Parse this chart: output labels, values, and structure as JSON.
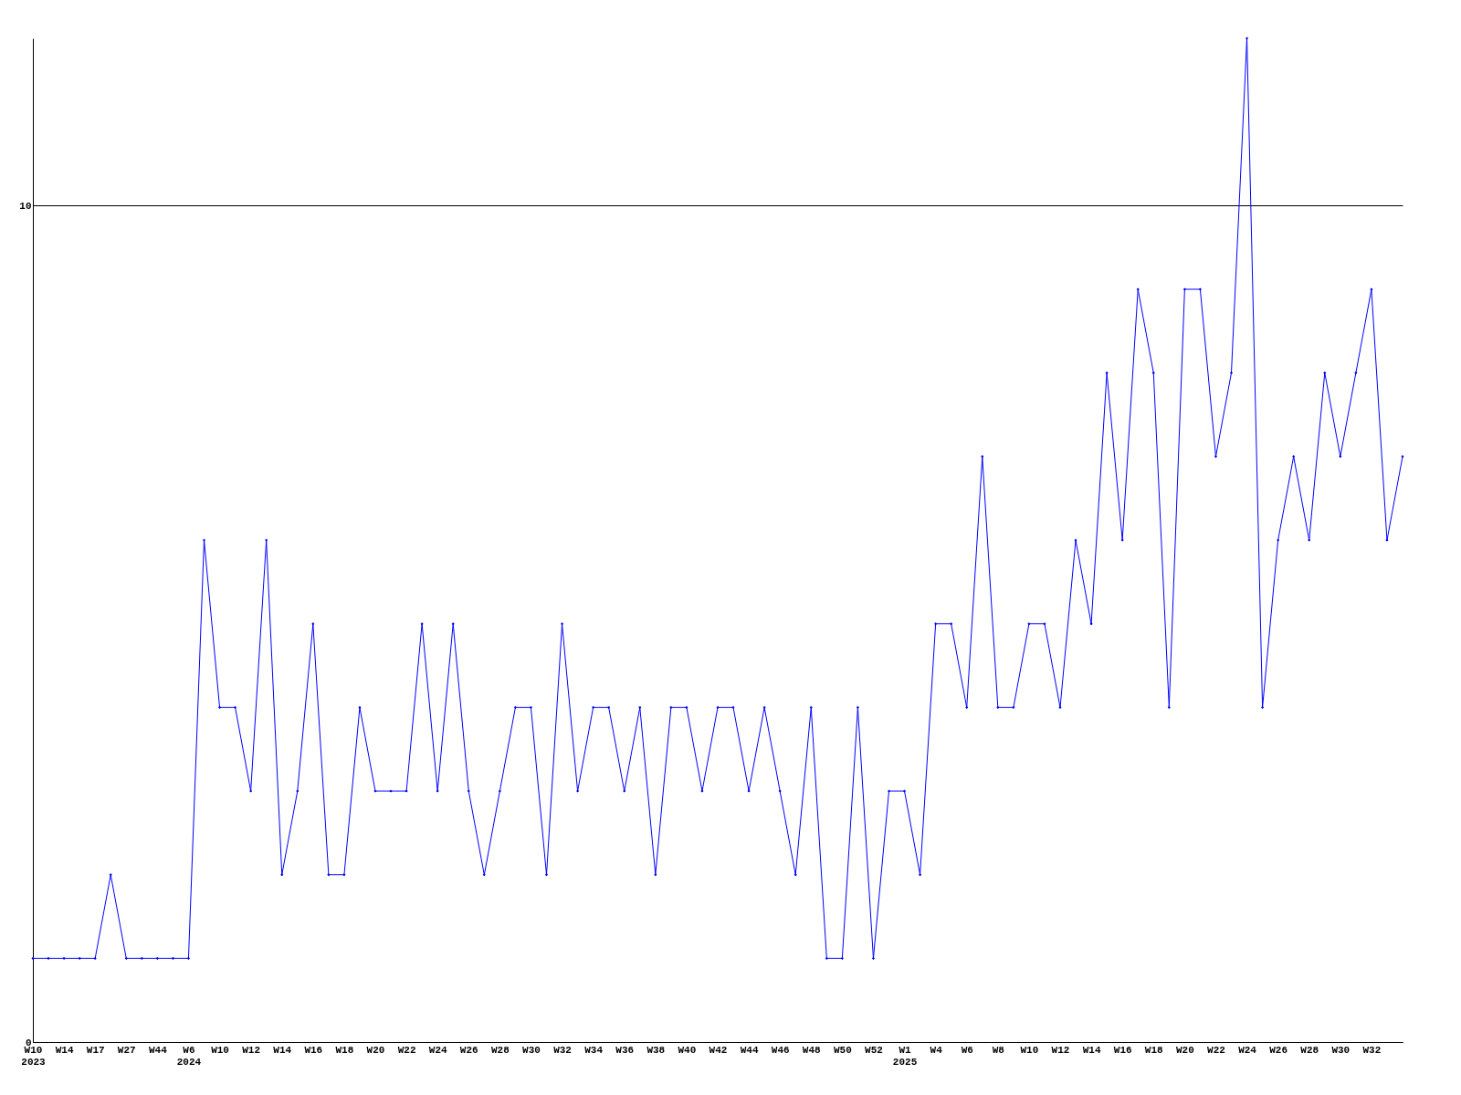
{
  "chart_data": {
    "type": "line",
    "categories": [
      "W10\n2023",
      null,
      "W14",
      null,
      "W17",
      null,
      "W27",
      null,
      "W44",
      null,
      "W6\n2024",
      null,
      "W10",
      null,
      "W12",
      null,
      "W14",
      null,
      "W16",
      null,
      "W18",
      null,
      "W20",
      null,
      "W22",
      null,
      "W24",
      null,
      "W26",
      null,
      "W28",
      null,
      "W30",
      null,
      "W32",
      null,
      "W34",
      null,
      "W36",
      null,
      "W38",
      null,
      "W40",
      null,
      "W42",
      null,
      "W44",
      null,
      "W46",
      null,
      "W48",
      null,
      "W50",
      null,
      "W52",
      null,
      "W1\n2025",
      null,
      "W4",
      null,
      "W6",
      null,
      "W8",
      null,
      "W10",
      null,
      "W12",
      null,
      "W14",
      null,
      "W16",
      null,
      "W18",
      null,
      "W20",
      null,
      "W22",
      null,
      "W24",
      null,
      "W26",
      null,
      "W28",
      null,
      "W30",
      null,
      "W32",
      null,
      null
    ],
    "series": [
      {
        "color": "#0000ff",
        "values": [
          1,
          1,
          1,
          1,
          1,
          2,
          1,
          1,
          1,
          1,
          1,
          6,
          4,
          4,
          3,
          6,
          2,
          3,
          5,
          2,
          2,
          4,
          3,
          3,
          3,
          5,
          3,
          5,
          3,
          2,
          3,
          4,
          4,
          2,
          5,
          3,
          4,
          4,
          3,
          4,
          2,
          4,
          4,
          3,
          4,
          4,
          3,
          4,
          3,
          2,
          4,
          1,
          1,
          4,
          1,
          3,
          3,
          2,
          5,
          5,
          4,
          7,
          4,
          4,
          5,
          5,
          4,
          6,
          5,
          8,
          6,
          9,
          8,
          4,
          9,
          9,
          7,
          8,
          12,
          4,
          6,
          7,
          6,
          8,
          7,
          8,
          9,
          6,
          7
        ]
      }
    ],
    "ylim": [
      0,
      12
    ],
    "yticks": [
      0,
      10
    ],
    "grid": "y",
    "marker": "diamond"
  }
}
